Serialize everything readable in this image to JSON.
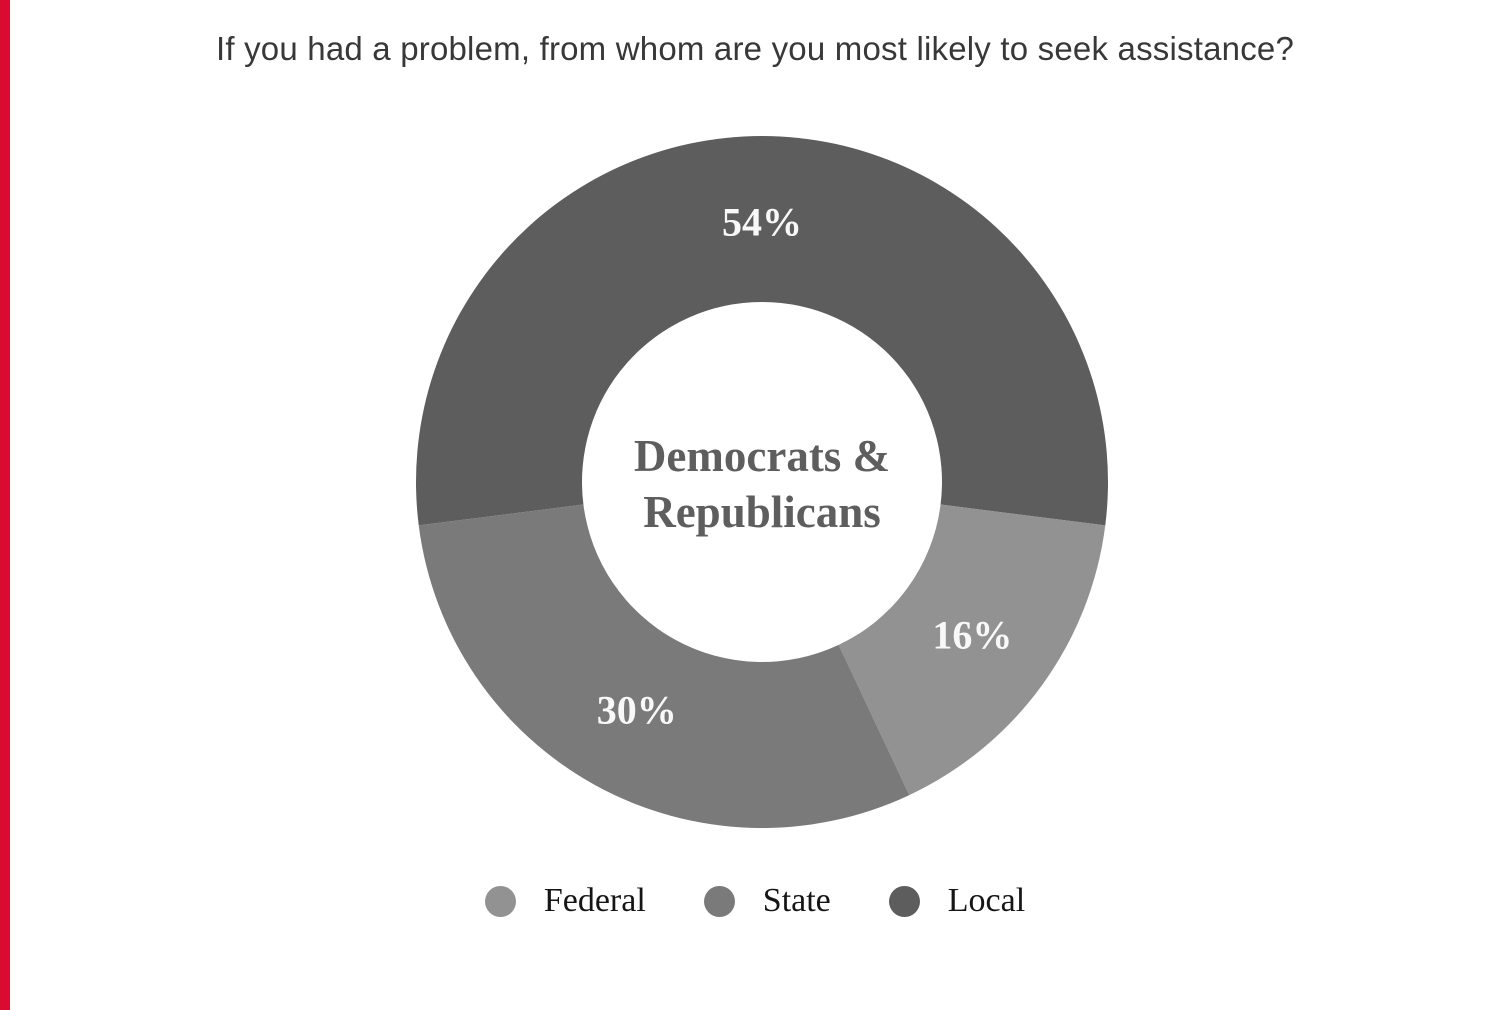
{
  "page": {
    "accent_bar_color": "#DB0A30",
    "background_color": "#FFFFFF"
  },
  "header": {
    "title": "If you had a problem, from whom are you most likely to seek assistance?"
  },
  "chart_data": {
    "type": "pie",
    "subtype": "donut",
    "title": "If you had a problem, from whom are you most likely to seek assistance?",
    "center_label": "Democrats & Republicans",
    "center_label_lines": [
      "Democrats &",
      "Republicans"
    ],
    "categories": [
      "Federal",
      "State",
      "Local"
    ],
    "values": [
      16,
      30,
      54
    ],
    "unit": "%",
    "data_labels": [
      "16%",
      "30%",
      "54%"
    ],
    "colors": {
      "Federal": "#929292",
      "State": "#7A7A7A",
      "Local": "#5D5D5D"
    },
    "data_label_color": "#F8F8F8",
    "draw_order_clockwise": [
      "Local",
      "Federal",
      "State"
    ],
    "orientation": "largest segment (Local) centered at 12 o'clock",
    "legend_position": "bottom"
  },
  "legend": {
    "items": [
      {
        "label": "Federal",
        "color": "#929292"
      },
      {
        "label": "State",
        "color": "#7A7A7A"
      },
      {
        "label": "Local",
        "color": "#5D5D5D"
      }
    ]
  }
}
